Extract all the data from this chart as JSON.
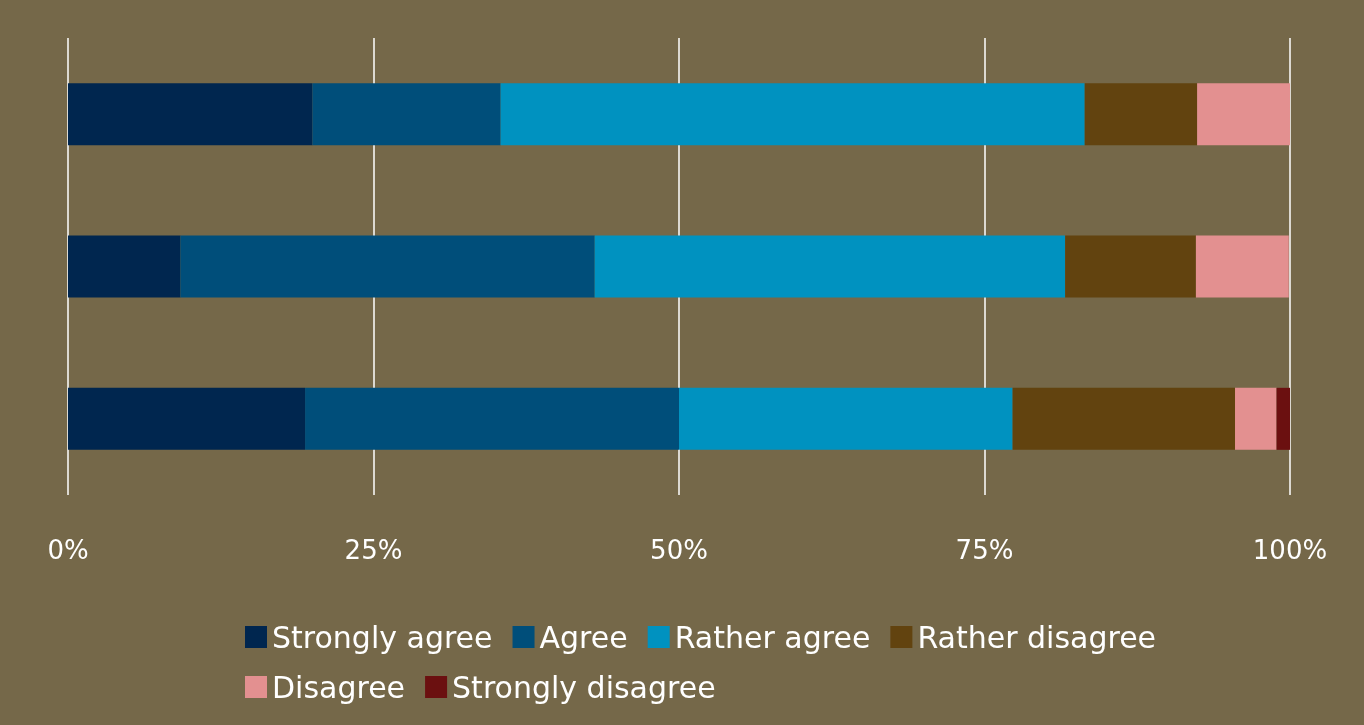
{
  "chart_data": {
    "type": "bar",
    "orientation": "horizontal",
    "stacked": true,
    "categories": [
      null,
      null,
      null
    ],
    "series": [
      {
        "name": "Strongly agree",
        "color": "#00264f",
        "values": [
          20.0,
          9.2,
          19.4
        ]
      },
      {
        "name": "Agree",
        "color": "#004e7a",
        "values": [
          15.4,
          33.9,
          30.6
        ]
      },
      {
        "name": "Rather agree",
        "color": "#0092c0",
        "values": [
          47.8,
          38.5,
          27.3
        ]
      },
      {
        "name": "Rather disagree",
        "color": "#62430f",
        "values": [
          9.2,
          10.7,
          18.2
        ]
      },
      {
        "name": "Disagree",
        "color": "#e39090",
        "values": [
          7.6,
          7.6,
          3.4
        ]
      },
      {
        "name": "Strongly disagree",
        "color": "#6b1010",
        "values": [
          0,
          0,
          1.1
        ]
      }
    ],
    "xlim": [
      0,
      100
    ],
    "xticks": [
      {
        "value": 0,
        "label": "0%"
      },
      {
        "value": 25,
        "label": "25%"
      },
      {
        "value": 50,
        "label": "50%"
      },
      {
        "value": 75,
        "label": "75%"
      },
      {
        "value": 100,
        "label": "100%"
      }
    ],
    "grid": "x",
    "legend": "bottom"
  }
}
